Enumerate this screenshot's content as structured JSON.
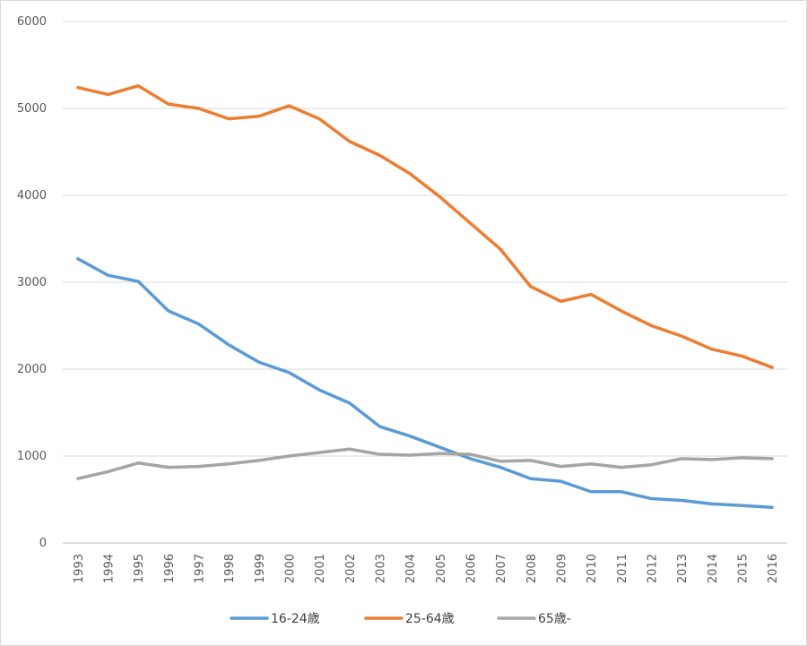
{
  "chart_data": {
    "type": "line",
    "title": "",
    "xlabel": "",
    "ylabel": "",
    "ylim": [
      0,
      6000
    ],
    "yticks": [
      0,
      1000,
      2000,
      3000,
      4000,
      5000,
      6000
    ],
    "grid": "horizontal",
    "legend_position": "bottom",
    "x": [
      "1993",
      "1994",
      "1995",
      "1996",
      "1997",
      "1998",
      "1999",
      "2000",
      "2001",
      "2002",
      "2003",
      "2004",
      "2005",
      "2006",
      "2007",
      "2008",
      "2009",
      "2010",
      "2011",
      "2012",
      "2013",
      "2014",
      "2015",
      "2016"
    ],
    "series": [
      {
        "name": "16-24歳",
        "color": "#5b9bd5",
        "values": [
          3270,
          3080,
          3010,
          2670,
          2520,
          2280,
          2080,
          1960,
          1760,
          1610,
          1340,
          1230,
          1100,
          970,
          870,
          740,
          710,
          590,
          590,
          510,
          490,
          450,
          430,
          410
        ]
      },
      {
        "name": "25-64歳",
        "color": "#ed7d31",
        "values": [
          5240,
          5160,
          5260,
          5050,
          5000,
          4880,
          4910,
          5030,
          4880,
          4620,
          4460,
          4250,
          3980,
          3680,
          3380,
          2950,
          2780,
          2860,
          2670,
          2500,
          2380,
          2230,
          2150,
          2020
        ]
      },
      {
        "name": "65歳-",
        "color": "#a5a5a5",
        "values": [
          740,
          820,
          920,
          870,
          880,
          910,
          950,
          1000,
          1040,
          1080,
          1020,
          1010,
          1030,
          1020,
          940,
          950,
          880,
          910,
          870,
          900,
          970,
          960,
          980,
          970
        ]
      }
    ]
  }
}
